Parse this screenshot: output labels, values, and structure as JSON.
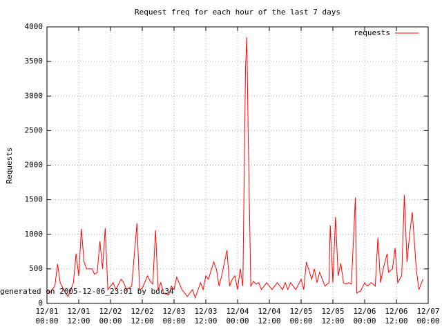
{
  "chart_data": {
    "type": "line",
    "title": "Request freq for each hour of the last 7 days",
    "y_label": "Requests",
    "footnote": "generated on 2005-12-06_23:01 by bdc34",
    "legend": "top-right",
    "grid": true,
    "ylim": [
      0,
      4000
    ],
    "yticks": [
      0,
      500,
      1000,
      1500,
      2000,
      2500,
      3000,
      3500,
      4000
    ],
    "xlim": [
      "12/01 00:00",
      "12/07 00:00"
    ],
    "xticks": [
      "12/01\n00:00",
      "12/01\n12:00",
      "12/02\n00:00",
      "12/02\n12:00",
      "12/03\n00:00",
      "12/03\n12:00",
      "12/04\n00:00",
      "12/04\n12:00",
      "12/05\n00:00",
      "12/05\n12:00",
      "12/06\n00:00",
      "12/06\n12:00",
      "12/07\n00:00"
    ],
    "x": [
      "12/01 00:00",
      "12/01 01:00",
      "12/01 03:00",
      "12/01 04:00",
      "12/01 05:00",
      "12/01 07:00",
      "12/01 08:00",
      "12/01 10:00",
      "12/01 11:00",
      "12/01 12:00",
      "12/01 13:00",
      "12/01 14:00",
      "12/01 15:00",
      "12/01 17:00",
      "12/01 18:00",
      "12/01 19:00",
      "12/01 20:00",
      "12/01 21:00",
      "12/01 22:00",
      "12/01 23:00",
      "12/02 00:00",
      "12/02 01:00",
      "12/02 02:00",
      "12/02 04:00",
      "12/02 05:00",
      "12/02 06:00",
      "12/02 08:00",
      "12/02 10:00",
      "12/02 11:00",
      "12/02 12:00",
      "12/02 14:00",
      "12/02 15:00",
      "12/02 16:00",
      "12/02 17:00",
      "12/02 18:00",
      "12/02 19:00",
      "12/02 20:00",
      "12/02 22:00",
      "12/02 23:00",
      "12/03 00:00",
      "12/03 01:00",
      "12/03 03:00",
      "12/03 04:00",
      "12/03 05:00",
      "12/03 07:00",
      "12/03 08:00",
      "12/03 10:00",
      "12/03 11:00",
      "12/03 12:00",
      "12/03 13:00",
      "12/03 15:00",
      "12/03 16:00",
      "12/03 17:00",
      "12/03 18:00",
      "12/03 20:00",
      "12/03 21:00",
      "12/03 22:00",
      "12/03 23:00",
      "12/04 00:00",
      "12/04 01:00",
      "12/04 02:00",
      "12/04 03:00",
      "12/04 03:30",
      "12/04 04:00",
      "12/04 05:00",
      "12/04 06:00",
      "12/04 07:00",
      "12/04 08:00",
      "12/04 09:00",
      "12/04 10:00",
      "12/04 11:00",
      "12/04 13:00",
      "12/04 14:00",
      "12/04 15:00",
      "12/04 17:00",
      "12/04 18:00",
      "12/04 19:00",
      "12/04 20:00",
      "12/04 21:00",
      "12/04 22:00",
      "12/05 00:00",
      "12/05 01:00",
      "12/05 02:00",
      "12/05 04:00",
      "12/05 05:00",
      "12/05 06:00",
      "12/05 07:00",
      "12/05 09:00",
      "12/05 10:30",
      "12/05 11:00",
      "12/05 12:00",
      "12/05 13:00",
      "12/05 14:00",
      "12/05 15:00",
      "12/05 16:00",
      "12/05 17:00",
      "12/05 18:00",
      "12/05 19:00",
      "12/05 20:30",
      "12/05 21:00",
      "12/05 22:30",
      "12/06 00:00",
      "12/06 01:00",
      "12/06 02:30",
      "12/06 04:00",
      "12/06 05:00",
      "12/06 06:00",
      "12/06 07:00",
      "12/06 08:30",
      "12/06 09:00",
      "12/06 10:30",
      "12/06 11:30",
      "12/06 12:30",
      "12/06 14:00",
      "12/06 15:00",
      "12/06 16:00",
      "12/06 17:00",
      "12/06 18:00",
      "12/06 19:30",
      "12/06 20:30",
      "12/06 22:00"
    ],
    "series": [
      {
        "name": "requests",
        "color": "#ff0000",
        "values": [
          200,
          150,
          250,
          570,
          300,
          150,
          100,
          300,
          720,
          400,
          1080,
          600,
          500,
          500,
          420,
          450,
          900,
          500,
          1090,
          200,
          250,
          300,
          200,
          350,
          300,
          200,
          250,
          1160,
          200,
          220,
          400,
          320,
          280,
          1060,
          200,
          300,
          150,
          120,
          250,
          200,
          380,
          200,
          150,
          100,
          200,
          80,
          300,
          200,
          400,
          350,
          600,
          500,
          250,
          400,
          770,
          250,
          350,
          400,
          200,
          500,
          250,
          3400,
          3850,
          2480,
          250,
          320,
          280,
          300,
          200,
          250,
          300,
          200,
          250,
          300,
          200,
          300,
          200,
          300,
          250,
          200,
          350,
          200,
          600,
          350,
          500,
          300,
          450,
          250,
          300,
          1130,
          300,
          1250,
          400,
          580,
          300,
          280,
          300,
          280,
          1530,
          150,
          180,
          300,
          250,
          300,
          250,
          950,
          300,
          500,
          720,
          450,
          500,
          800,
          300,
          400,
          1570,
          600,
          1000,
          1320,
          500,
          200,
          350
        ]
      }
    ]
  }
}
